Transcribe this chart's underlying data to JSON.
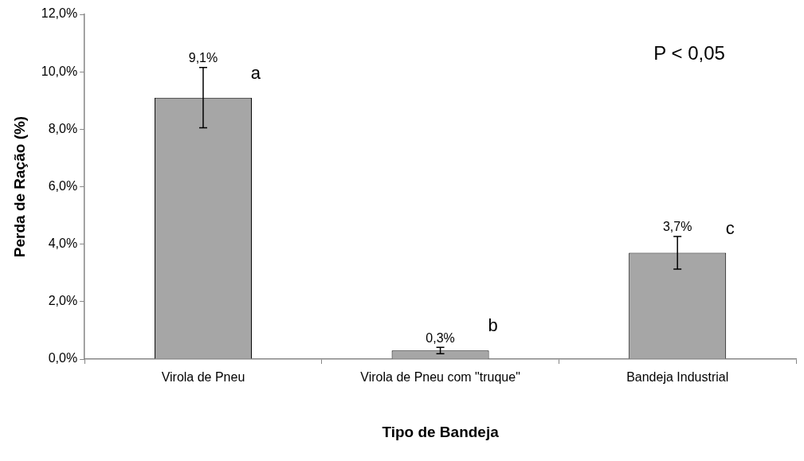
{
  "chart_data": {
    "type": "bar",
    "xlabel": "Tipo de Bandeja",
    "ylabel": "Perda de Ração (%)",
    "categories": [
      "Virola de Pneu",
      "Virola de Pneu com \"truque\"",
      "Bandeja Industrial"
    ],
    "values": [
      9.1,
      0.3,
      3.7
    ],
    "color": "#a6a6a6",
    "errors": [
      1.05,
      0.11,
      0.57
    ],
    "value_labels": [
      "9,1%",
      "0,3%",
      "3,7%"
    ],
    "ylim": [
      0,
      12
    ],
    "yticks": [
      {
        "value": 0,
        "label": "0,0%"
      },
      {
        "value": 2,
        "label": "2,0%"
      },
      {
        "value": 4,
        "label": "4,0%"
      },
      {
        "value": 6,
        "label": "6,0%"
      },
      {
        "value": 8,
        "label": "8,0%"
      },
      {
        "value": 10,
        "label": "10,0%"
      },
      {
        "value": 12,
        "label": "12,0%"
      }
    ],
    "annotations": [
      "a",
      "b",
      "c",
      "P < 0,05"
    ],
    "grid": false,
    "legend": false
  }
}
